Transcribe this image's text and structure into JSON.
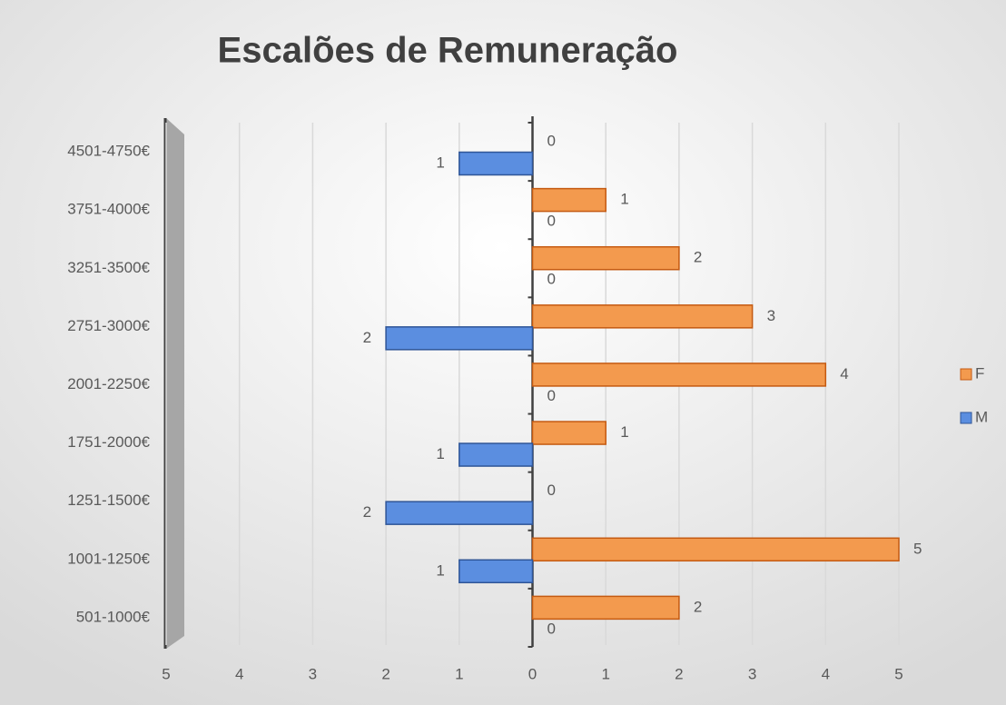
{
  "chart_data": {
    "type": "bar",
    "orientation": "horizontal",
    "title": "Escalões de Remuneração",
    "categories": [
      "4501-4750€",
      "3751-4000€",
      "3251-3500€",
      "2751-3000€",
      "2001-2250€",
      "1751-2000€",
      "1251-1500€",
      "1001-1250€",
      "501-1000€"
    ],
    "series": [
      {
        "name": "F",
        "color": "#f39a4e",
        "values": [
          0,
          1,
          2,
          3,
          4,
          1,
          0,
          5,
          2
        ]
      },
      {
        "name": "M",
        "color": "#5b8ee0",
        "values": [
          -1,
          0,
          0,
          -2,
          0,
          -1,
          -2,
          -1,
          0
        ],
        "value_labels": [
          "1",
          "0",
          "0",
          "2",
          "0",
          "1",
          "2",
          "1",
          "0"
        ]
      }
    ],
    "xlim": [
      -5,
      5
    ],
    "xticks": [
      {
        "value": -5,
        "label": "5"
      },
      {
        "value": -4,
        "label": "4"
      },
      {
        "value": -3,
        "label": "3"
      },
      {
        "value": -2,
        "label": "2"
      },
      {
        "value": -1,
        "label": "1"
      },
      0,
      1,
      2,
      3,
      4,
      5
    ],
    "grid": true,
    "legend": "right"
  }
}
